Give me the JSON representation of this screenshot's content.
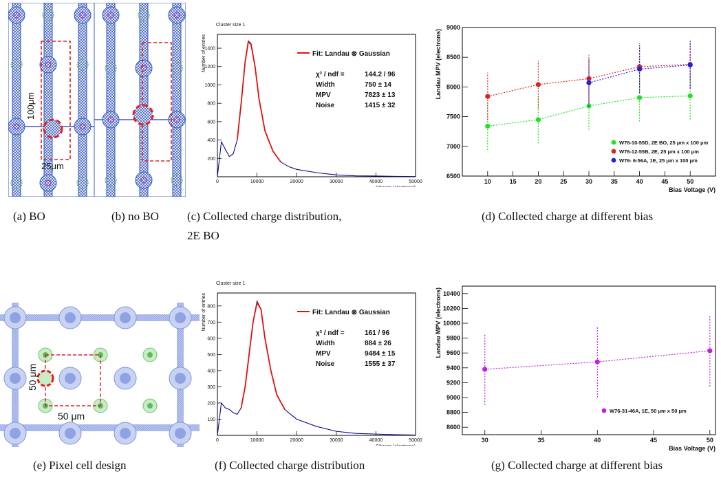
{
  "captions": {
    "a": "(a) BO",
    "b": "(b) no BO",
    "c_line1": "(c) Collected charge distribution,",
    "c_line2": "2E BO",
    "d": "(d) Collected charge at different bias",
    "e": "(e) Pixel cell design",
    "f": "(f) Collected charge distribution",
    "g": "(g) Collected charge at different bias"
  },
  "layout_a": {
    "dim_v": "100μm",
    "dim_h": "25μm"
  },
  "layout_e": {
    "dim_v": "50 μm",
    "dim_h": "50 μm"
  },
  "colors": {
    "metal": "#3a5cc4",
    "implant": "#5dbb5d",
    "cell_outline": "#e02020",
    "landau_fit": "#e01010",
    "histo": "#0a0a8c"
  },
  "chart_c": {
    "type": "line",
    "corner_title": "Cluster size 1",
    "ylabel": "Number of entries",
    "xlabel": "Charge (electrons)",
    "xlim": [
      0,
      50000
    ],
    "ylim": [
      0,
      1550
    ],
    "xticks": [
      0,
      10000,
      20000,
      30000,
      40000,
      50000
    ],
    "yticks": [
      200,
      400,
      600,
      800,
      1000,
      1200,
      1400
    ],
    "legend": "Fit: Landau ⊗ Gaussian",
    "stats": [
      {
        "name": "χ² / ndf =",
        "value": "144.2 / 96"
      },
      {
        "name": "Width",
        "value": "750 ± 14"
      },
      {
        "name": "MPV",
        "value": "7823 ± 13"
      },
      {
        "name": "Noise",
        "value": "1415 ± 32"
      }
    ],
    "histogram": {
      "x": [
        0,
        1000,
        2000,
        3000,
        4000,
        5000,
        6000,
        7000,
        7800,
        8500,
        9500,
        10500,
        12000,
        14000,
        16000,
        18000,
        20000,
        25000,
        30000,
        35000,
        40000,
        45000,
        50000
      ],
      "y": [
        0,
        380,
        300,
        220,
        250,
        400,
        800,
        1250,
        1480,
        1450,
        1200,
        850,
        500,
        280,
        160,
        110,
        80,
        45,
        20,
        10,
        8,
        4,
        2
      ]
    },
    "fit": {
      "x": [
        5000,
        6000,
        7000,
        7800,
        8500,
        9500,
        10500,
        12000,
        14000,
        16000
      ],
      "y": [
        400,
        800,
        1250,
        1470,
        1440,
        1200,
        850,
        500,
        280,
        160
      ]
    }
  },
  "chart_d": {
    "type": "scatter",
    "ylabel": "Landau MPV (electrons)",
    "xlabel": "Bias Voltage (V)",
    "xlim": [
      5,
      55
    ],
    "ylim": [
      6500,
      9000
    ],
    "xticks": [
      10,
      15,
      20,
      25,
      30,
      35,
      40,
      45,
      50
    ],
    "yticks": [
      6500,
      7000,
      7500,
      8000,
      8500,
      9000
    ],
    "series": [
      {
        "name": "W76-10-55D, 2E BO, 25 μm x 100 μm",
        "color": "#22e022",
        "x": [
          10,
          20,
          30,
          40,
          50
        ],
        "y": [
          7340,
          7450,
          7680,
          7820,
          7850
        ],
        "err": [
          400,
          400,
          400,
          400,
          400
        ]
      },
      {
        "name": "W76-12-55B, 2E, 25 μm x 100 μm",
        "color": "#e02020",
        "x": [
          10,
          20,
          30,
          40,
          50
        ],
        "y": [
          7840,
          8040,
          8140,
          8340,
          8380
        ],
        "err": [
          400,
          400,
          400,
          400,
          400
        ]
      },
      {
        "name": "W76- 6-56A, 1E, 25 μm x 100 μm",
        "color": "#2020e0",
        "x": [
          30,
          40,
          50
        ],
        "y": [
          8070,
          8300,
          8370
        ],
        "err": [
          400,
          400,
          400
        ]
      }
    ]
  },
  "chart_f": {
    "type": "line",
    "corner_title": "Cluster size 1",
    "ylabel": "Number of entries",
    "xlabel": "Charge (electrons)",
    "xlim": [
      0,
      50000
    ],
    "ylim": [
      0,
      880
    ],
    "xticks": [
      0,
      10000,
      20000,
      30000,
      40000,
      50000
    ],
    "yticks": [
      100,
      200,
      300,
      400,
      500,
      600,
      700,
      800
    ],
    "legend": "Fit: Landau ⊗ Gaussian",
    "stats": [
      {
        "name": "χ² / ndf =",
        "value": "161 / 96"
      },
      {
        "name": "Width",
        "value": "884 ± 26"
      },
      {
        "name": "MPV",
        "value": "9484 ± 15"
      },
      {
        "name": "Noise",
        "value": "1555 ± 37"
      }
    ],
    "histogram": {
      "x": [
        0,
        1000,
        2000,
        3000,
        4000,
        5000,
        6000,
        7000,
        8000,
        9000,
        10000,
        11000,
        12000,
        13500,
        15000,
        17000,
        20000,
        25000,
        30000,
        35000,
        40000,
        45000,
        50000
      ],
      "y": [
        0,
        200,
        170,
        160,
        140,
        130,
        170,
        300,
        500,
        700,
        830,
        780,
        600,
        400,
        250,
        160,
        100,
        55,
        25,
        12,
        8,
        4,
        2
      ]
    },
    "fit": {
      "x": [
        6000,
        7000,
        8000,
        9000,
        10000,
        11000,
        12000,
        13500,
        15000,
        17000
      ],
      "y": [
        170,
        300,
        500,
        700,
        820,
        780,
        600,
        400,
        250,
        160
      ]
    }
  },
  "chart_g": {
    "type": "scatter",
    "ylabel": "Landau MPV (electrons)",
    "xlabel": "Bias Voltage (V)",
    "xlim": [
      28,
      50.5
    ],
    "ylim": [
      8500,
      10500
    ],
    "xticks": [
      30,
      35,
      40,
      45,
      50
    ],
    "yticks": [
      8600,
      8800,
      9000,
      9200,
      9400,
      9600,
      9800,
      10000,
      10200,
      10400
    ],
    "series": [
      {
        "name": "W76-31-46A, 1E, 50 μm x 50 μm",
        "color": "#c020e0",
        "x": [
          30,
          40,
          50
        ],
        "y": [
          9380,
          9480,
          9630
        ],
        "err": [
          480,
          480,
          480
        ]
      }
    ]
  }
}
